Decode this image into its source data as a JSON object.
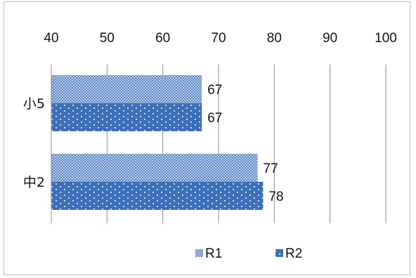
{
  "chart_data": {
    "type": "bar",
    "orientation": "horizontal",
    "categories": [
      "小5",
      "中2"
    ],
    "series": [
      {
        "name": "R1",
        "values": [
          67,
          77
        ],
        "color": "#5b86c8",
        "pattern": "dense-dots"
      },
      {
        "name": "R2",
        "values": [
          67,
          78
        ],
        "color": "#3b6fb8",
        "pattern": "sparse-dots"
      }
    ],
    "xlim": [
      40,
      100
    ],
    "x_ticks": [
      "40",
      "50",
      "60",
      "70",
      "80",
      "90",
      "100"
    ],
    "x_axis_position": "top",
    "gridlines": true,
    "legend_position": "bottom",
    "data_labels": true,
    "title": "",
    "xlabel": "",
    "ylabel": ""
  }
}
